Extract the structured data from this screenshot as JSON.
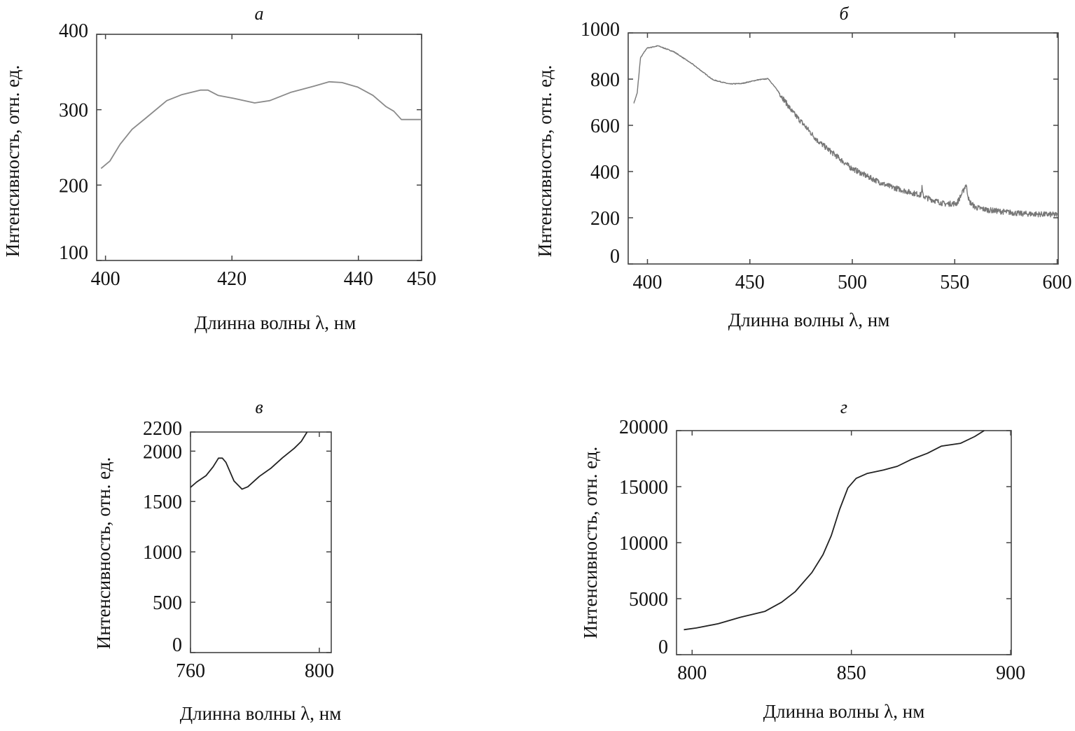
{
  "chart_data": [
    {
      "type": "line",
      "title": "а",
      "xlabel": "Длинна волны λ, нм",
      "ylabel": "Интенсивность, отн. ед.",
      "xlim": [
        398.6,
        450
      ],
      "ylim": [
        100,
        400
      ],
      "xticks": [
        400,
        420,
        440,
        450
      ],
      "yticks": [
        100,
        200,
        300,
        400
      ],
      "line_color": "#8a8a8a",
      "noise": 0,
      "x": [
        399.3,
        400.7,
        402.3,
        404.2,
        406.4,
        409.7,
        412.1,
        415.0,
        416.2,
        417.8,
        420.3,
        423.6,
        426.0,
        429.3,
        432.9,
        435.4,
        437.4,
        439.9,
        442.3,
        444.4,
        445.6,
        446.8,
        450.0
      ],
      "y": [
        222,
        232,
        254,
        274,
        289,
        312,
        320,
        326,
        326,
        319,
        315,
        309,
        312,
        323,
        331,
        337,
        336,
        330,
        319,
        304,
        298,
        287,
        287
      ]
    },
    {
      "type": "line",
      "title": "б",
      "xlabel": "Длинна волны λ, нм",
      "ylabel": "Интенсивность, отн. ед.",
      "xlim": [
        390.6,
        600.5
      ],
      "ylim": [
        0,
        1000
      ],
      "xticks": [
        400,
        450,
        500,
        550,
        600
      ],
      "yticks": [
        0,
        200,
        400,
        600,
        800,
        1000
      ],
      "line_color": "#777777",
      "noise": 12,
      "x": [
        393.4,
        395.0,
        396.6,
        399.7,
        405.2,
        413.0,
        422.0,
        432.0,
        440.0,
        446.0,
        454.0,
        459.0,
        464.0,
        470.6,
        476.9,
        483.0,
        491.0,
        499.0,
        508.0,
        517.0,
        527.0,
        533.5,
        534.0,
        534.5,
        536.0,
        545.0,
        551.0,
        554.0,
        555.5,
        557.0,
        560.0,
        566.0,
        582.0,
        600.0
      ],
      "y": [
        697,
        740,
        892,
        934,
        944,
        918,
        865,
        797,
        779,
        781,
        797,
        802,
        745,
        660,
        597,
        534,
        476,
        418,
        376,
        339,
        313,
        298,
        330,
        296,
        287,
        260,
        262,
        313,
        345,
        271,
        245,
        234,
        218,
        213
      ]
    },
    {
      "type": "line",
      "title": "в",
      "xlabel": "Длинна волны λ, нм",
      "ylabel": "Интенсивность, отн. ед.",
      "xlim": [
        760,
        803.7
      ],
      "ylim": [
        0,
        2190
      ],
      "xticks": [
        760,
        800
      ],
      "yticks": [
        0,
        500,
        1000,
        1500,
        2000,
        2200
      ],
      "line_color": "#222222",
      "noise": 0,
      "x": [
        760.0,
        761.9,
        764.8,
        767.0,
        768.7,
        769.9,
        771.0,
        773.5,
        776.0,
        777.8,
        781.4,
        785.0,
        788.6,
        792.2,
        794.4,
        796.2
      ],
      "y": [
        1640,
        1693,
        1756,
        1844,
        1931,
        1931,
        1889,
        1704,
        1623,
        1646,
        1750,
        1831,
        1935,
        2028,
        2097,
        2190
      ]
    },
    {
      "type": "line",
      "title": "г",
      "xlabel": "Длинна волны λ, нм",
      "ylabel": "Интенсивность, отн. ед.",
      "xlim": [
        795.1,
        900.2
      ],
      "ylim": [
        0,
        20000
      ],
      "xticks": [
        800,
        850,
        900
      ],
      "yticks": [
        0,
        5000,
        10000,
        15000,
        20000
      ],
      "line_color": "#222222",
      "noise": 0,
      "x": [
        797.4,
        801.3,
        808.2,
        815.1,
        822.9,
        828.1,
        832.4,
        837.6,
        841.1,
        843.7,
        846.3,
        848.9,
        851.5,
        854.9,
        860.1,
        864.4,
        868.7,
        873.9,
        878.3,
        884.3,
        888.7,
        891.7
      ],
      "y": [
        2230,
        2380,
        2760,
        3340,
        3870,
        4680,
        5630,
        7330,
        8930,
        10630,
        12970,
        14890,
        15740,
        16170,
        16490,
        16810,
        17410,
        17980,
        18620,
        18870,
        19470,
        20000
      ]
    }
  ]
}
